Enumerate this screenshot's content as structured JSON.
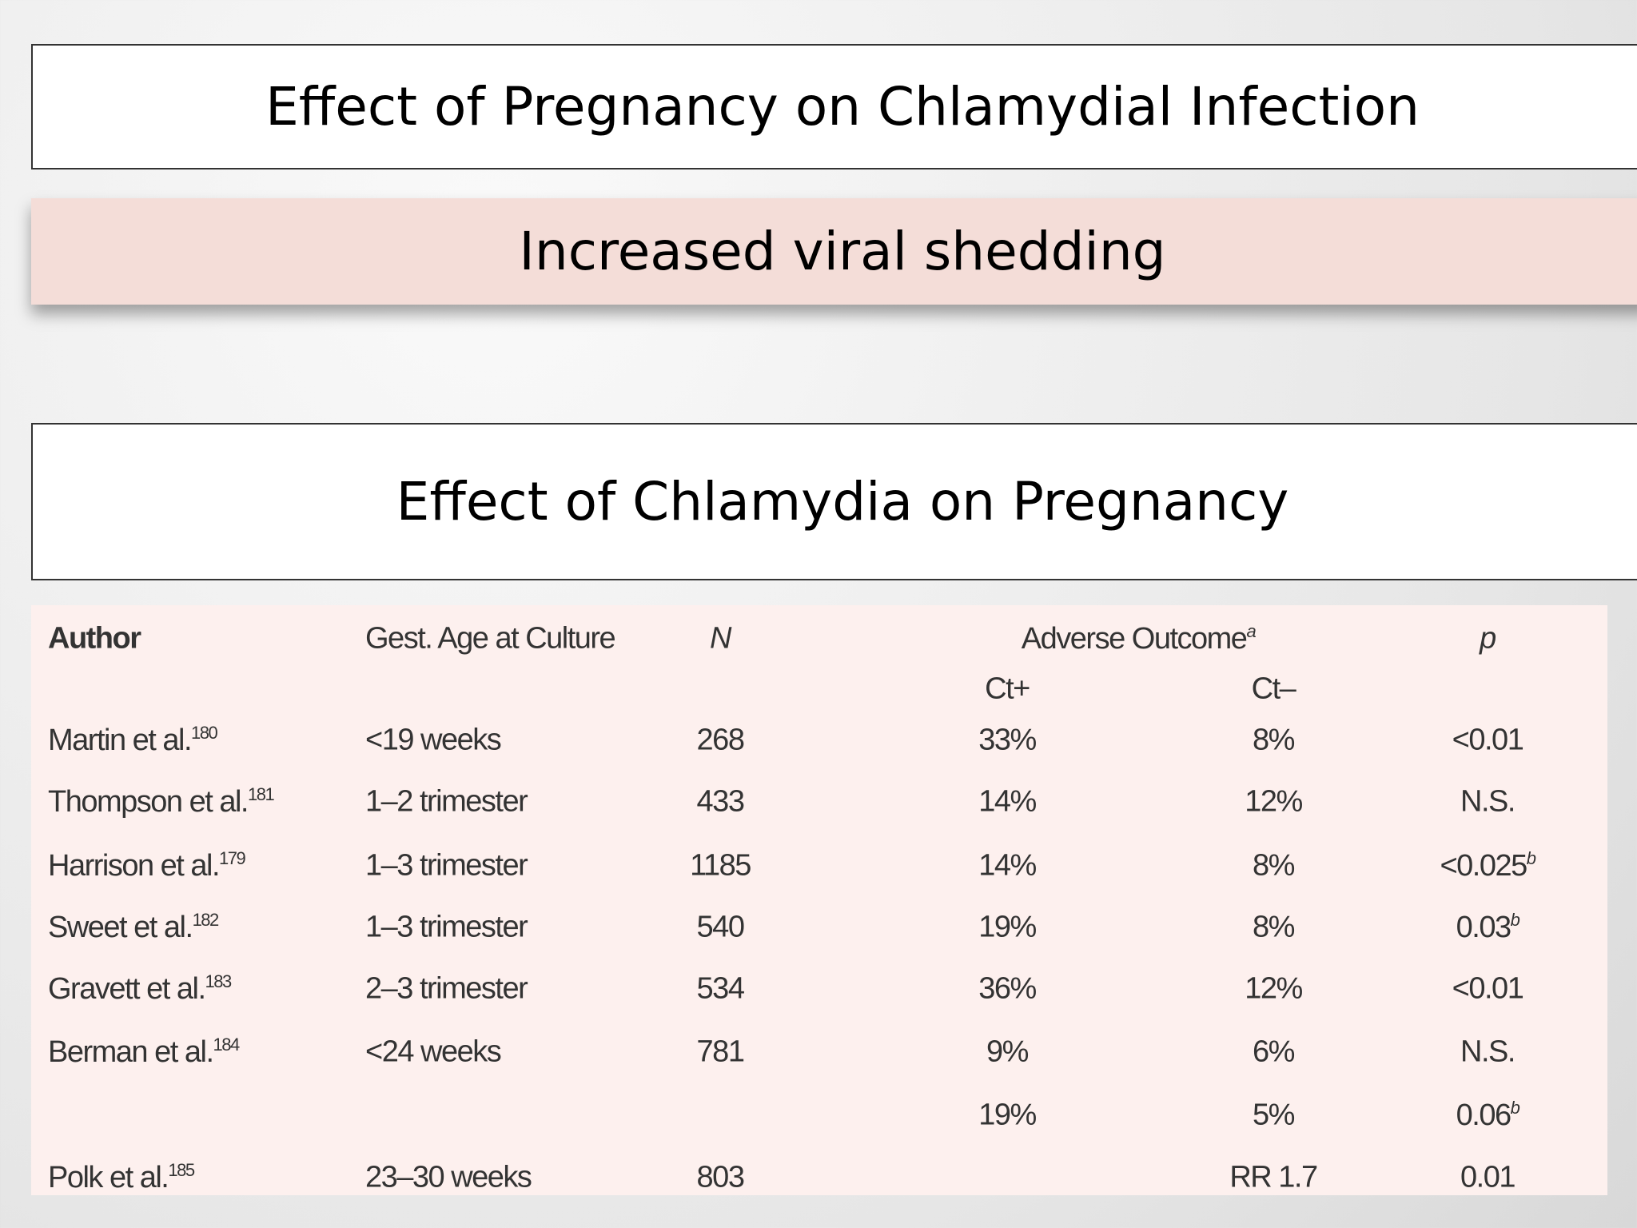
{
  "slide": {
    "title": "Effect of Pregnancy on Chlamydial Infection",
    "subtitle": "Increased viral shedding",
    "section": "Effect of Chlamydia on Pregnancy",
    "table": {
      "headers": {
        "author": "Author",
        "age": "Gest. Age at Culture",
        "n": "N",
        "outcome": "Adverse Outcome",
        "outcome_note": "a",
        "p": "p"
      },
      "subheaders": {
        "ct_pos": "Ct+",
        "ct_neg": "Ct–"
      },
      "rows": [
        {
          "author": "Martin et al.",
          "ref": "180",
          "age": "<19 weeks",
          "n": "268",
          "ct_pos": "33%",
          "ct_neg": "8%",
          "p": "<0.01"
        },
        {
          "author": "Thompson et al.",
          "ref": "181",
          "age": "1–2 trimester",
          "n": "433",
          "ct_pos": "14%",
          "ct_neg": "12%",
          "p": "N.S."
        },
        {
          "author": "Harrison et al.",
          "ref": "179",
          "age": "1–3 trimester",
          "n": "1185",
          "ct_pos": "14%",
          "ct_neg": "8%",
          "p": "<0.025",
          "p_note": "b"
        },
        {
          "author": "Sweet et al.",
          "ref": "182",
          "age": "1–3 trimester",
          "n": "540",
          "ct_pos": "19%",
          "ct_neg": "8%",
          "p": "0.03",
          "p_note": "b"
        },
        {
          "author": "Gravett et al.",
          "ref": "183",
          "age": "2–3 trimester",
          "n": "534",
          "ct_pos": "36%",
          "ct_neg": "12%",
          "p": "<0.01"
        },
        {
          "author": "Berman et al.",
          "ref": "184",
          "age": "<24 weeks",
          "n": "781",
          "ct_pos": "9%",
          "ct_neg": "6%",
          "p": "N.S."
        },
        {
          "ct_pos": "19%",
          "ct_neg": "5%",
          "p": "0.06",
          "p_note": "b"
        },
        {
          "author": "Polk et al.",
          "ref": "185",
          "age": "23–30 weeks",
          "n": "803",
          "ct_neg": "RR 1.7",
          "p": "0.01"
        }
      ]
    }
  }
}
